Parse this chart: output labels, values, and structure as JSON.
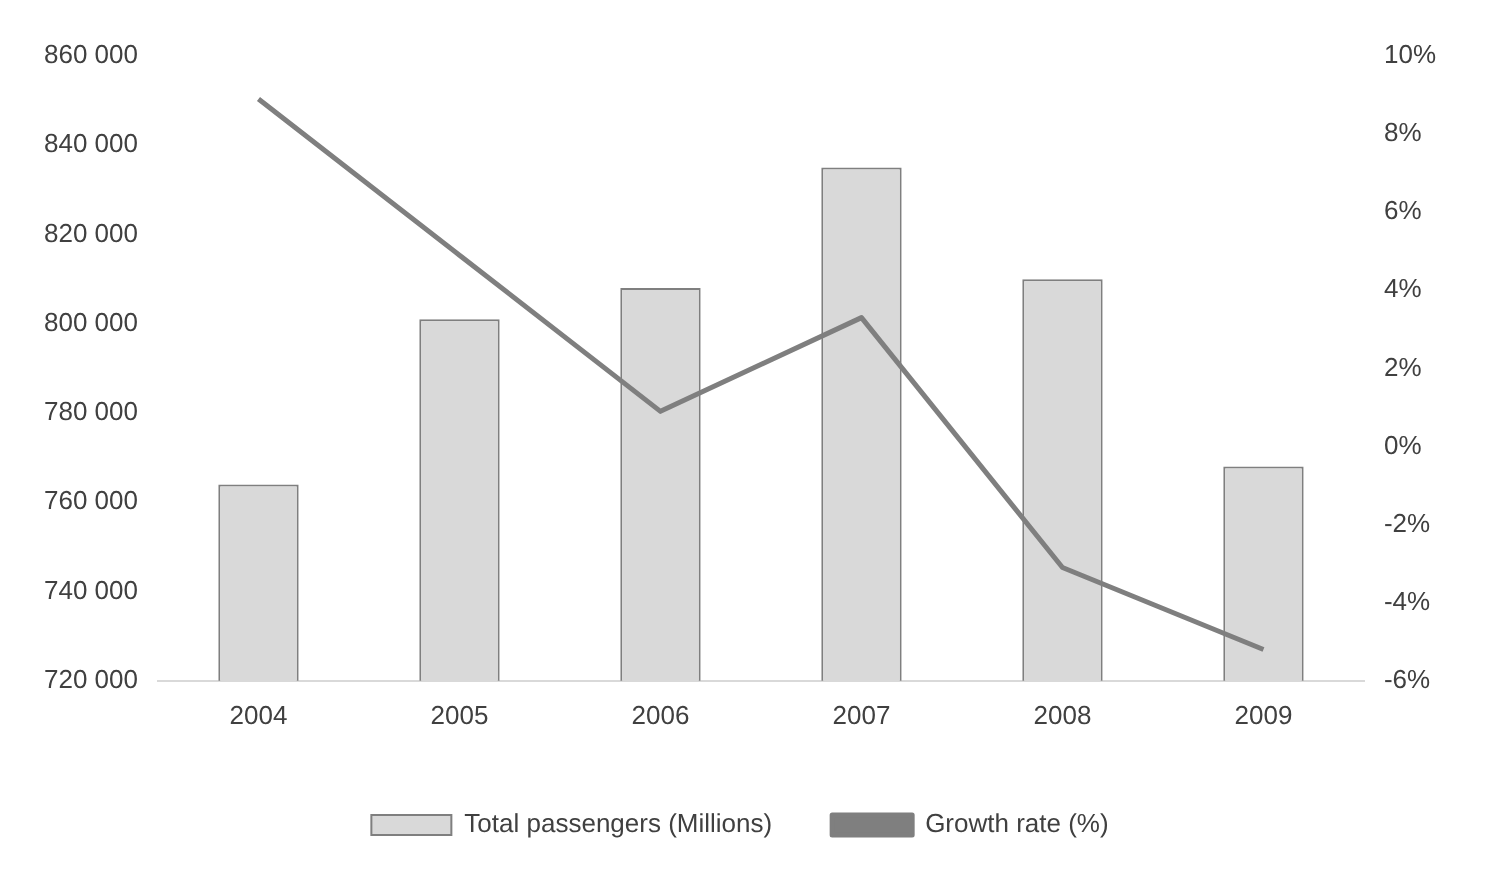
{
  "chart_data": {
    "type": "bar",
    "categories": [
      "2004",
      "2005",
      "2006",
      "2007",
      "2008",
      "2009"
    ],
    "series": [
      {
        "name": "Total passengers (Millions)",
        "color": "#d9d9d9",
        "values": [
          764000,
          801000,
          808000,
          835000,
          810000,
          768000
        ]
      },
      {
        "name": "Growth rate (%)",
        "type": "line",
        "axis": "y2",
        "color": "#7f7f7f",
        "values": [
          8.9,
          4.9,
          0.9,
          3.3,
          -3.1,
          -5.2
        ]
      }
    ],
    "ylim": [
      720000,
      860000
    ],
    "yticks": [
      {
        "value": 720000,
        "label": "720 000"
      },
      {
        "value": 740000,
        "label": "740 000"
      },
      {
        "value": 760000,
        "label": "760 000"
      },
      {
        "value": 780000,
        "label": "780 000"
      },
      {
        "value": 800000,
        "label": "800 000"
      },
      {
        "value": 820000,
        "label": "820 000"
      },
      {
        "value": 840000,
        "label": "840 000"
      },
      {
        "value": 860000,
        "label": "860 000"
      }
    ],
    "y2lim": [
      -6,
      10
    ],
    "y2ticks": [
      {
        "value": -6,
        "label": "-6%"
      },
      {
        "value": -4,
        "label": "-4%"
      },
      {
        "value": -2,
        "label": "-2%"
      },
      {
        "value": 0,
        "label": "0%"
      },
      {
        "value": 2,
        "label": "2%"
      },
      {
        "value": 4,
        "label": "4%"
      },
      {
        "value": 6,
        "label": "6%"
      },
      {
        "value": 8,
        "label": "8%"
      },
      {
        "value": 10,
        "label": "10%"
      }
    ],
    "legend": "bottom",
    "grid": false,
    "marker": "none",
    "line_style": "solid"
  }
}
